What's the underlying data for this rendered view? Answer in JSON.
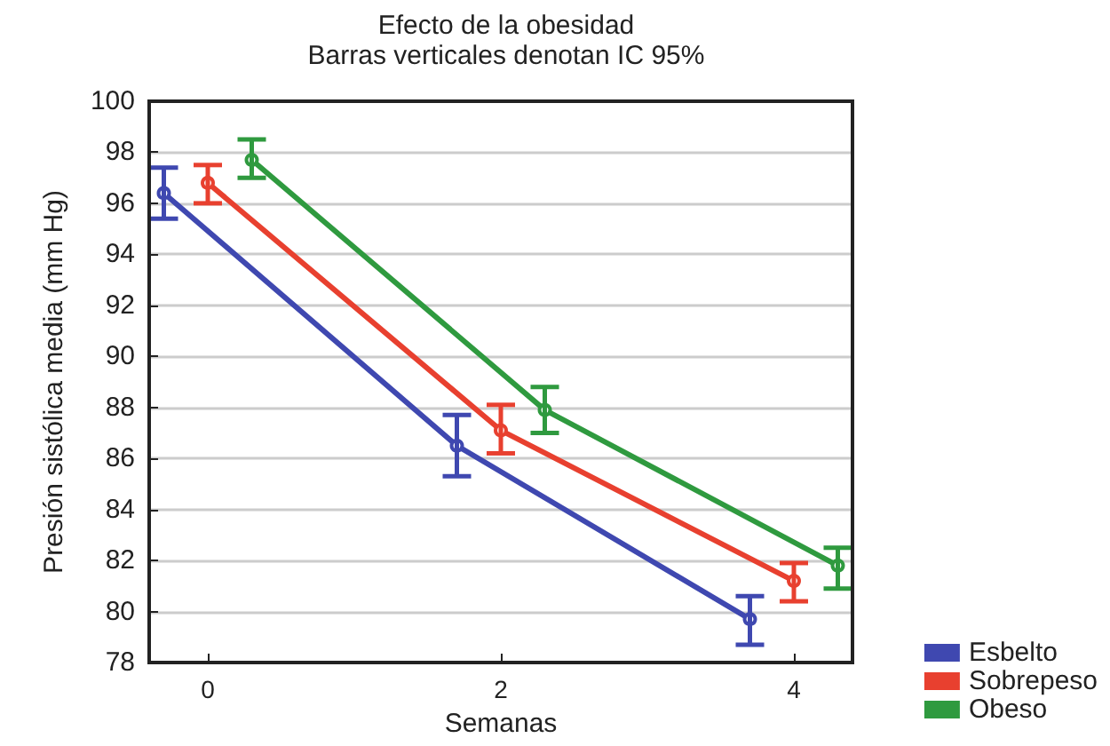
{
  "chart_data": {
    "type": "line",
    "title": "Efecto de la obesidad",
    "subtitle": "Barras verticales denotan IC 95%",
    "xlabel": "Semanas",
    "ylabel": "Presión sistólica media (mm Hg)",
    "xlim": [
      -0.4,
      4.4
    ],
    "xticks": [
      0,
      2,
      4
    ],
    "ylim": [
      78,
      100
    ],
    "yticks": [
      78,
      80,
      82,
      84,
      86,
      88,
      90,
      92,
      94,
      96,
      98,
      100
    ],
    "grid": "y",
    "legend": "bottom right",
    "marker": "circle",
    "line_style": "solid",
    "series": [
      {
        "name": "Esbelto",
        "color": "#3f48b0",
        "x": [
          -0.3,
          1.7,
          3.7
        ],
        "values": [
          96.4,
          86.5,
          79.7
        ],
        "errors": [
          [
            95.4,
            97.4
          ],
          [
            85.3,
            87.7
          ],
          [
            78.7,
            80.6
          ]
        ]
      },
      {
        "name": "Sobrepeso",
        "color": "#e8402f",
        "x": [
          0,
          2,
          4
        ],
        "values": [
          96.8,
          87.1,
          81.2
        ],
        "errors": [
          [
            96.0,
            97.5
          ],
          [
            86.2,
            88.1
          ],
          [
            80.4,
            81.9
          ]
        ]
      },
      {
        "name": "Obeso",
        "color": "#2f9a3f",
        "x": [
          0.3,
          2.3,
          4.3
        ],
        "values": [
          97.7,
          87.9,
          81.8
        ],
        "errors": [
          [
            97.0,
            98.5
          ],
          [
            87.0,
            88.8
          ],
          [
            80.9,
            82.5
          ]
        ]
      }
    ]
  }
}
